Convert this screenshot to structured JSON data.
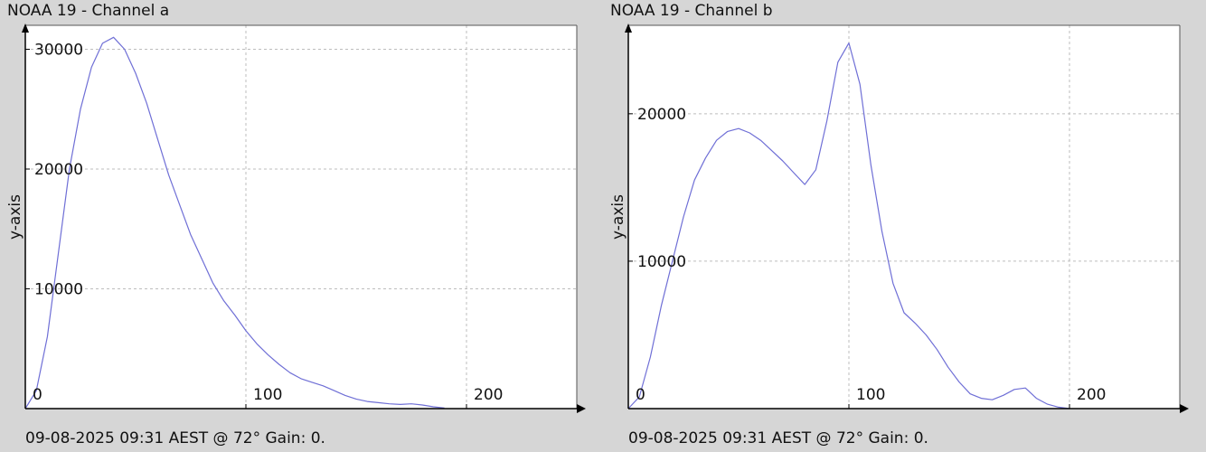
{
  "chart_data": [
    {
      "type": "line",
      "title": "NOAA 19 - Channel a",
      "ylabel": "y-axis",
      "xlabel": "",
      "footer": "09-08-2025 09:31 AEST @ 72° Gain: 0.",
      "xlim": [
        0,
        250
      ],
      "ylim": [
        0,
        32000
      ],
      "xticks": [
        0,
        100,
        200
      ],
      "yticks": [
        10000,
        20000,
        30000
      ],
      "grid": true,
      "line_color": "#6f6fd6",
      "series": [
        {
          "x": [
            0,
            5,
            10,
            15,
            20,
            25,
            30,
            35,
            40,
            45,
            50,
            55,
            60,
            65,
            70,
            75,
            80,
            85,
            90,
            95,
            100,
            105,
            110,
            115,
            120,
            125,
            130,
            135,
            140,
            145,
            150,
            155,
            160,
            165,
            170,
            175,
            180,
            185,
            190
          ],
          "y": [
            0,
            1500,
            6000,
            13000,
            20000,
            25000,
            28500,
            30500,
            31000,
            30000,
            28000,
            25500,
            22500,
            19500,
            17000,
            14500,
            12500,
            10500,
            9000,
            7800,
            6500,
            5400,
            4500,
            3700,
            3000,
            2500,
            2200,
            1900,
            1500,
            1100,
            800,
            600,
            500,
            400,
            350,
            400,
            300,
            150,
            50
          ]
        }
      ]
    },
    {
      "type": "line",
      "title": "NOAA 19 - Channel b",
      "ylabel": "y-axis",
      "xlabel": "",
      "footer": "09-08-2025 09:31 AEST @ 72° Gain: 0.",
      "xlim": [
        0,
        250
      ],
      "ylim": [
        0,
        26000
      ],
      "xticks": [
        0,
        100,
        200
      ],
      "yticks": [
        10000,
        20000
      ],
      "grid": true,
      "line_color": "#6f6fd6",
      "series": [
        {
          "x": [
            0,
            5,
            10,
            15,
            20,
            25,
            30,
            35,
            40,
            45,
            50,
            55,
            60,
            65,
            70,
            75,
            80,
            85,
            90,
            95,
            100,
            105,
            110,
            115,
            120,
            125,
            130,
            135,
            140,
            145,
            150,
            155,
            160,
            165,
            170,
            175,
            180,
            185,
            190,
            195,
            200
          ],
          "y": [
            0,
            800,
            3500,
            7000,
            10000,
            13000,
            15500,
            17000,
            18200,
            18800,
            19000,
            18700,
            18200,
            17500,
            16800,
            16000,
            15200,
            16200,
            19500,
            23500,
            24800,
            22000,
            16500,
            12000,
            8500,
            6500,
            5800,
            5000,
            4000,
            2800,
            1800,
            1000,
            700,
            600,
            900,
            1300,
            1400,
            700,
            300,
            100,
            0
          ]
        }
      ]
    }
  ]
}
